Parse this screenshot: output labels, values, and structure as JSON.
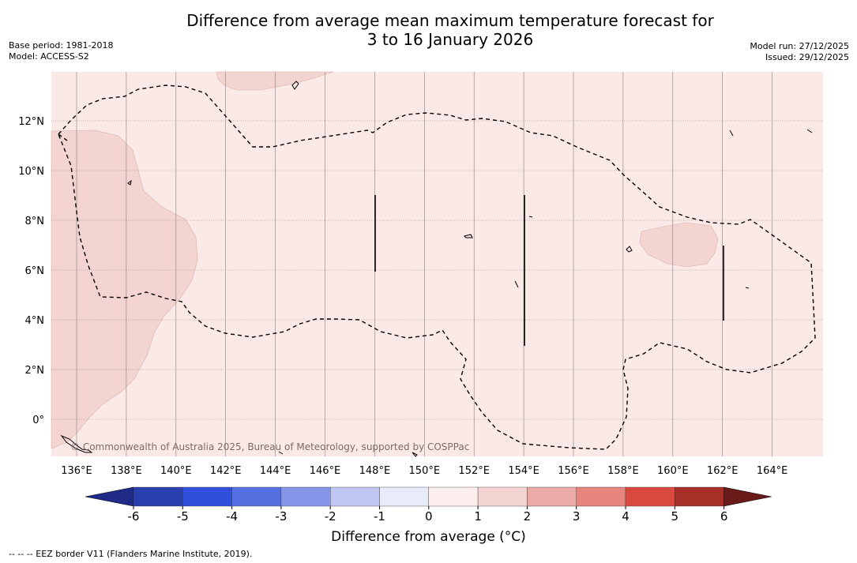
{
  "title": {
    "line1": "Difference from average mean maximum temperature forecast for",
    "line2": "3 to 16 January 2026"
  },
  "meta": {
    "base_period": "Base period: 1981-2018",
    "model": "Model: ACCESS-S2",
    "model_run": "Model run: 27/12/2025",
    "issued": "Issued: 29/12/2025"
  },
  "map": {
    "lon_labels": [
      "136°E",
      "138°E",
      "140°E",
      "142°E",
      "144°E",
      "146°E",
      "148°E",
      "150°E",
      "152°E",
      "154°E",
      "156°E",
      "158°E",
      "160°E",
      "162°E",
      "164°E"
    ],
    "lat_labels": [
      "12°N",
      "10°N",
      "8°N",
      "6°N",
      "4°N",
      "2°N",
      "0°"
    ],
    "copyright": "© Commonwealth of Australia 2025, Bureau of Meteorology, supported by COSPPac",
    "colors": {
      "background_anomaly": "#fbe9e7",
      "warmer_region": "#f3d4d0",
      "grid": "#808080",
      "eez": "#000000"
    }
  },
  "colorbar": {
    "ticks": [
      "-6",
      "-5",
      "-4",
      "-3",
      "-2",
      "-1",
      "0",
      "1",
      "2",
      "3",
      "4",
      "5",
      "6"
    ],
    "colors": [
      "#1f2b86",
      "#2a3fae",
      "#3050dc",
      "#5570e0",
      "#8596e8",
      "#c0c8f2",
      "#e8ebfa",
      "#fceeec",
      "#f3d4d0",
      "#ebaaa5",
      "#e5857d",
      "#d84a40",
      "#a82e28",
      "#6b1a1a"
    ],
    "label": "Difference from average ($^\\circ$C)",
    "label_display": "Difference from average (°C)"
  },
  "footnote": "--  --  -- EEZ border V11 (Flanders Marine Institute, 2019)."
}
